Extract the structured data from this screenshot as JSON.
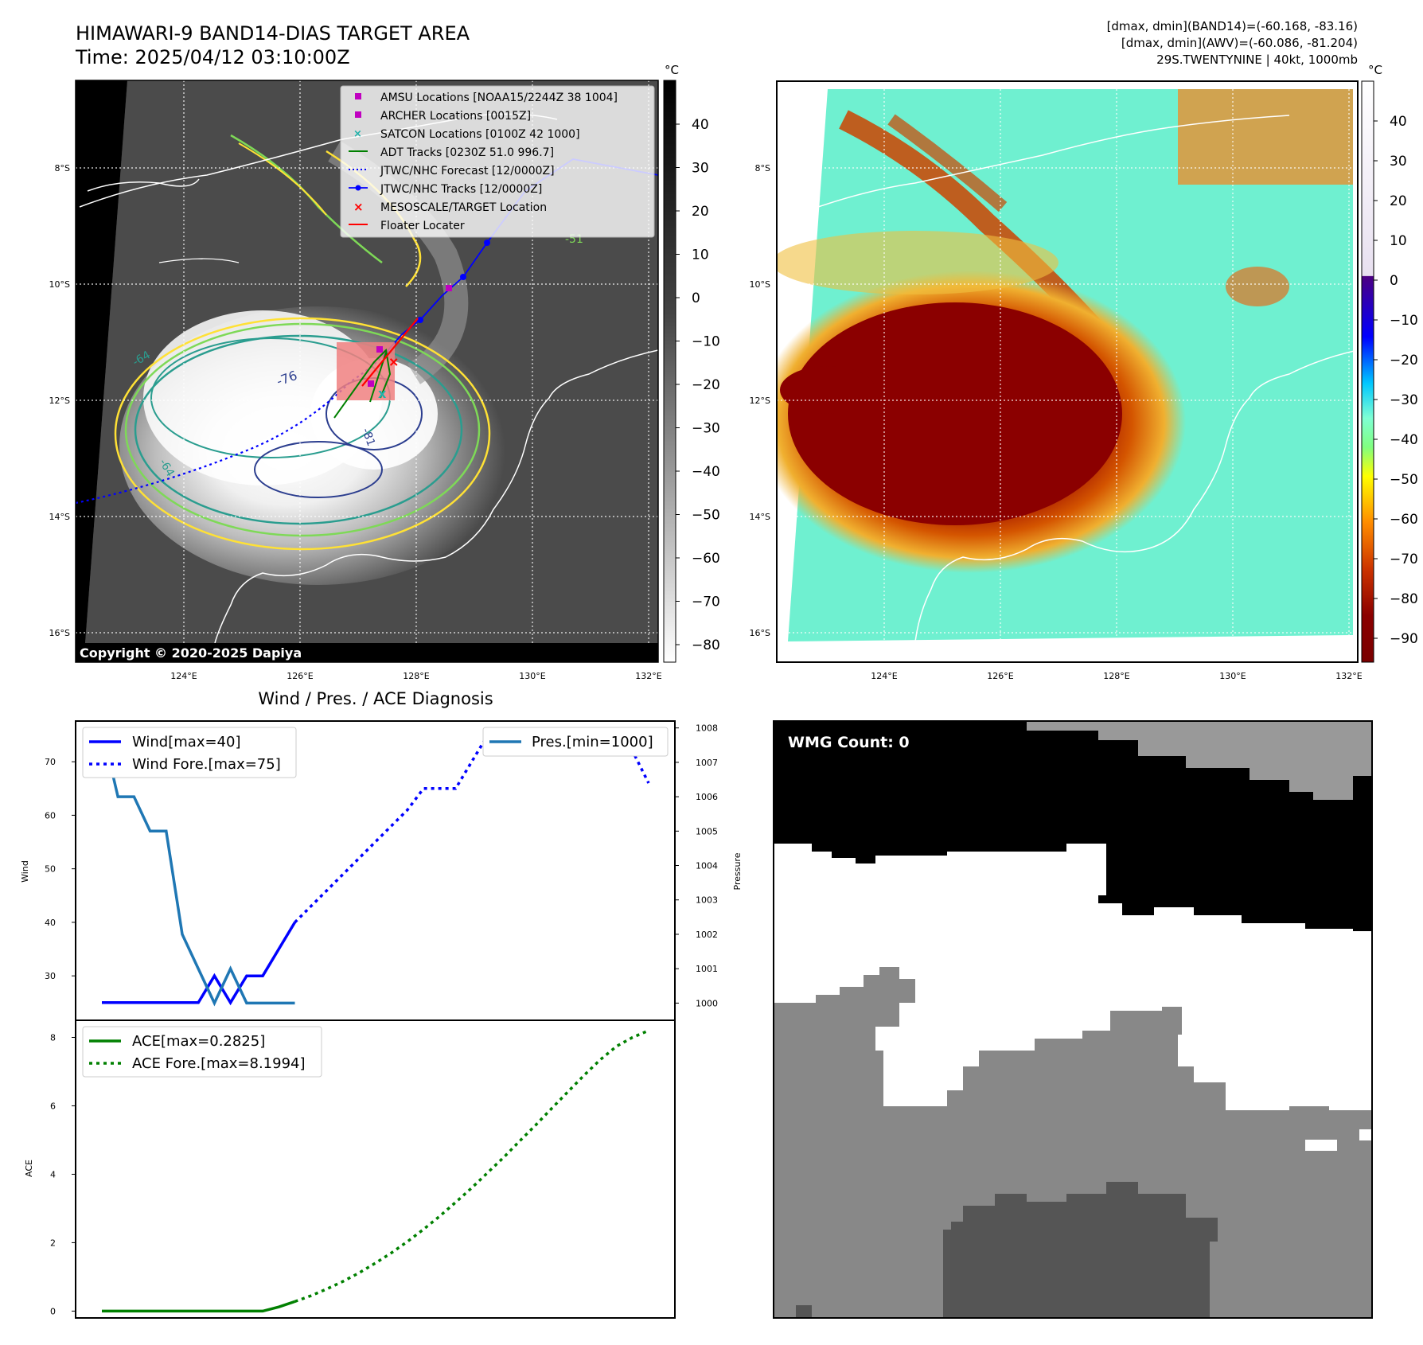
{
  "title": {
    "line1": "HIMAWARI-9 BAND14-DIAS TARGET AREA",
    "line2": "Time: 2025/04/12 03:10:00Z"
  },
  "info": {
    "line1": "[dmax, dmin](BAND14)=(-60.168, -83.16)",
    "line2": "[dmax, dmin](AWV)=(-60.086, -81.204)",
    "line3": "29S.TWENTYNINE | 40kt, 1000mb"
  },
  "map": {
    "lat_labels": [
      "8°S",
      "10°S",
      "12°S",
      "14°S",
      "16°S"
    ],
    "lon_labels": [
      "124°E",
      "126°E",
      "128°E",
      "130°E",
      "132°E"
    ],
    "copyright": "Copyright © 2020-2025 Dapiya",
    "contour_labels": [
      "-64",
      "-76",
      "-81",
      "-64",
      "-51"
    ],
    "legend": [
      "AMSU Locations [NOAA15/2244Z 38 1004]",
      "ARCHER Locations [0015Z]",
      "SATCON Locations [0100Z 42 1000]",
      "ADT Tracks [0230Z 51.0 996.7]",
      "JTWC/NHC Forecast [12/0000Z]",
      "JTWC/NHC Tracks [12/0000Z]",
      "MESOSCALE/TARGET Location",
      "Floater Locater"
    ]
  },
  "colorbar_gray": {
    "unit": "°C",
    "ticks": [
      "40",
      "30",
      "20",
      "10",
      "0",
      "−10",
      "−20",
      "−30",
      "−40",
      "−50",
      "−60",
      "−70",
      "−80"
    ]
  },
  "colorbar_color": {
    "unit": "°C",
    "ticks": [
      "40",
      "30",
      "20",
      "10",
      "0",
      "−10",
      "−20",
      "−30",
      "−40",
      "−50",
      "−60",
      "−70",
      "−80",
      "−90"
    ]
  },
  "wmg": {
    "label": "WMG Count: 0"
  },
  "chart_data": [
    {
      "type": "line",
      "title": "Wind / Pres. / ACE Diagnosis",
      "ylabel": "Wind",
      "y2label": "Pressure",
      "ylim": [
        21.7,
        77.6
      ],
      "y2lim": [
        999.5,
        1008.2
      ],
      "y_ticks": [
        "70",
        "60",
        "50",
        "40",
        "30"
      ],
      "y2_ticks": [
        "1008",
        "1007",
        "1006",
        "1005",
        "1004",
        "1003",
        "1002",
        "1001",
        "1000"
      ],
      "series": [
        {
          "name": "Wind[max=40]",
          "style": "solid",
          "color": "#0000ff",
          "x": [
            0,
            1,
            2,
            3,
            4,
            5,
            6,
            7,
            8,
            9,
            10,
            11,
            12
          ],
          "values": [
            25,
            25,
            25,
            25,
            25,
            25,
            25,
            30,
            25,
            30,
            30,
            35,
            40
          ]
        },
        {
          "name": "Wind Fore.[max=75]",
          "style": "dotted",
          "color": "#0000ff",
          "x": [
            12,
            13,
            14,
            15,
            16,
            17,
            18,
            19,
            20,
            21,
            22,
            23,
            24,
            25,
            26,
            27,
            28,
            29,
            30,
            31,
            32,
            33,
            34
          ],
          "values": [
            40,
            43,
            46,
            49,
            52,
            55,
            58,
            61,
            65,
            65,
            65,
            70,
            75,
            75,
            75,
            75,
            75,
            75,
            75,
            72,
            72,
            72,
            66
          ]
        },
        {
          "name": "Pres.[min=1000]",
          "style": "solid",
          "axis": "right",
          "color": "#1f77b4",
          "x": [
            0,
            1,
            2,
            3,
            4,
            5,
            6,
            7,
            8,
            9,
            10,
            11,
            12
          ],
          "values": [
            1008,
            1006,
            1006,
            1005,
            1005,
            1002,
            1001,
            1000,
            1001,
            1000,
            1000,
            1000,
            1000
          ]
        }
      ]
    },
    {
      "type": "line",
      "ylabel": "ACE",
      "ylim": [
        -0.2,
        8.5
      ],
      "y_ticks": [
        "8",
        "6",
        "4",
        "2",
        "0"
      ],
      "series": [
        {
          "name": "ACE[max=0.2825]",
          "style": "solid",
          "color": "#008000",
          "x": [
            0,
            1,
            2,
            3,
            4,
            5,
            6,
            7,
            8,
            9,
            10,
            11,
            12
          ],
          "values": [
            0,
            0,
            0,
            0,
            0,
            0,
            0,
            0,
            0,
            0,
            0,
            0.12,
            0.28
          ]
        },
        {
          "name": "ACE Fore.[max=8.1994]",
          "style": "dotted",
          "color": "#008000",
          "x": [
            12,
            13,
            14,
            15,
            16,
            17,
            18,
            19,
            20,
            21,
            22,
            23,
            24,
            25,
            26,
            27,
            28,
            29,
            30,
            31,
            32,
            33,
            34
          ],
          "values": [
            0.28,
            0.45,
            0.65,
            0.87,
            1.12,
            1.4,
            1.7,
            2.03,
            2.39,
            2.77,
            3.18,
            3.6,
            4.05,
            4.5,
            4.98,
            5.45,
            5.94,
            6.42,
            6.9,
            7.35,
            7.74,
            8.0,
            8.2
          ]
        }
      ]
    }
  ]
}
